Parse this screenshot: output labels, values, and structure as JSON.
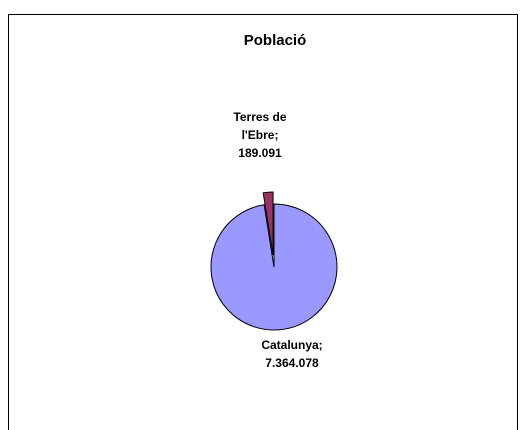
{
  "chart_data": {
    "type": "pie",
    "title": "Població",
    "categories": [
      "Catalunya",
      "Terres de l'Ebre"
    ],
    "values": [
      7364078,
      189091
    ],
    "value_labels": [
      "7.364.078",
      "189.091"
    ],
    "colors": [
      "#9999ff",
      "#993366"
    ],
    "exploded": [
      false,
      true
    ]
  }
}
